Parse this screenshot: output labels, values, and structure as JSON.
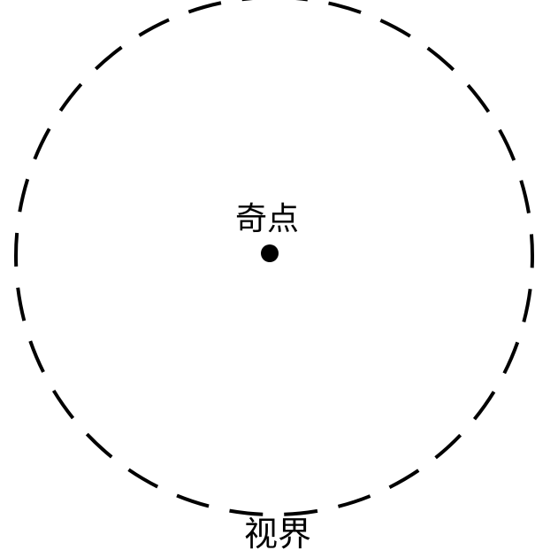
{
  "labels": {
    "singularity": "奇点",
    "event_horizon": "视界"
  },
  "colors": {
    "stroke": "#000000",
    "background": "#ffffff"
  }
}
